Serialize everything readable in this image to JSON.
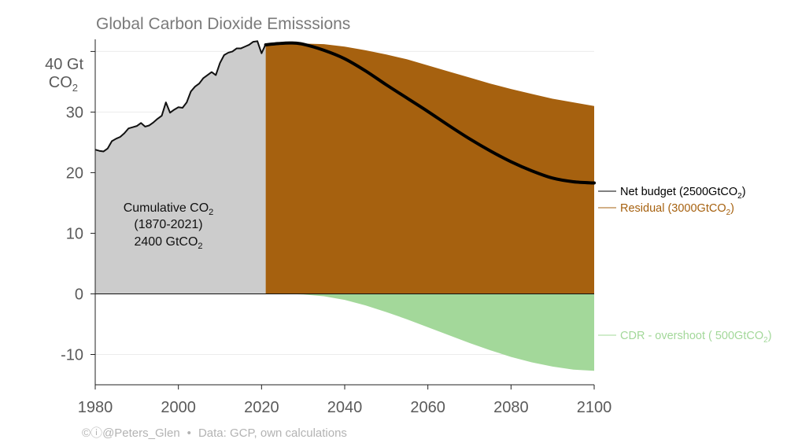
{
  "chart_data": {
    "type": "area",
    "title": "Global Carbon Dioxide Emisssions",
    "ylabel_main": "40 Gt",
    "ylabel_unit": "CO",
    "ylabel_sub": "2",
    "xlim": [
      1980,
      2100
    ],
    "ylim": [
      -15,
      42
    ],
    "x_ticks": [
      1980,
      2000,
      2020,
      2040,
      2060,
      2080,
      2100
    ],
    "y_ticks": [
      {
        "value": 30,
        "label": "30"
      },
      {
        "value": 20,
        "label": "20"
      },
      {
        "value": 10,
        "label": "10"
      },
      {
        "value": 0,
        "label": "0"
      },
      {
        "value": -10,
        "label": "-10"
      }
    ],
    "historical": {
      "fill_color": "#cccccc",
      "line_color": "#111111",
      "x": [
        1980,
        1981,
        1982,
        1983,
        1984,
        1985,
        1986,
        1987,
        1988,
        1989,
        1990,
        1991,
        1992,
        1993,
        1994,
        1995,
        1996,
        1997,
        1998,
        1999,
        2000,
        2001,
        2002,
        2003,
        2004,
        2005,
        2006,
        2007,
        2008,
        2009,
        2010,
        2011,
        2012,
        2013,
        2014,
        2015,
        2016,
        2017,
        2018,
        2019,
        2020,
        2021
      ],
      "y": [
        23.8,
        23.6,
        23.5,
        24.0,
        25.2,
        25.6,
        25.9,
        26.5,
        27.3,
        27.5,
        27.7,
        28.2,
        27.6,
        27.8,
        28.3,
        28.9,
        29.4,
        31.6,
        29.9,
        30.4,
        30.8,
        30.7,
        31.6,
        33.4,
        34.2,
        34.7,
        35.6,
        36.1,
        36.6,
        36.1,
        38.1,
        39.4,
        39.8,
        40.0,
        40.5,
        40.5,
        40.8,
        41.1,
        41.6,
        41.7,
        39.7,
        41.2
      ]
    },
    "residual": {
      "name": "Residual",
      "fill_color": "#a6610f",
      "x": [
        2021,
        2024,
        2027,
        2030,
        2035,
        2040,
        2045,
        2050,
        2055,
        2060,
        2065,
        2070,
        2075,
        2080,
        2085,
        2090,
        2095,
        2100
      ],
      "y": [
        41.2,
        41.3,
        41.3,
        41.3,
        41.2,
        40.8,
        40.2,
        39.5,
        38.7,
        37.7,
        36.7,
        35.7,
        34.7,
        33.8,
        33.0,
        32.2,
        31.6,
        31.0
      ]
    },
    "cdr": {
      "name": "CDR - overshoot",
      "fill_color": "#a3d89a",
      "x": [
        2021,
        2025,
        2030,
        2035,
        2040,
        2045,
        2050,
        2055,
        2060,
        2065,
        2070,
        2075,
        2080,
        2085,
        2090,
        2095,
        2100
      ],
      "y": [
        0,
        0,
        -0.1,
        -0.4,
        -1.0,
        -1.9,
        -3.0,
        -4.2,
        -5.5,
        -6.8,
        -8.1,
        -9.3,
        -10.4,
        -11.3,
        -12.0,
        -12.5,
        -12.7
      ]
    },
    "net_budget": {
      "name": "Net budget",
      "line_color": "#000000",
      "x": [
        2021,
        2024,
        2027,
        2030,
        2035,
        2040,
        2045,
        2050,
        2055,
        2060,
        2065,
        2070,
        2075,
        2080,
        2085,
        2090,
        2095,
        2100
      ],
      "y": [
        41.1,
        41.3,
        41.4,
        41.2,
        40.2,
        38.8,
        36.8,
        34.5,
        32.3,
        30.1,
        27.8,
        25.6,
        23.6,
        21.8,
        20.3,
        19.1,
        18.5,
        18.3
      ]
    },
    "legend": [
      {
        "id": "net",
        "text": "Net budget (2500GtCO",
        "sub": "2",
        "end": ")",
        "color": "#000000"
      },
      {
        "id": "residual",
        "text": "Residual (3000GtCO",
        "sub": "2",
        "end": ")",
        "color": "#a6610f"
      },
      {
        "id": "cdr",
        "text": "CDR - overshoot ( 500GtCO",
        "sub": "2",
        "end": ")",
        "color": "#a3d89a"
      }
    ],
    "annotation": {
      "line1": "Cumulative CO",
      "line1_sub": "2",
      "line2": "(1870-2021)",
      "line3": "2400 GtCO",
      "line3_sub": "2"
    }
  },
  "footer": {
    "license_icons": "©ⓘ",
    "handle": "@Peters_Glen",
    "bullet": "•",
    "source": "Data: GCP, own calculations"
  }
}
